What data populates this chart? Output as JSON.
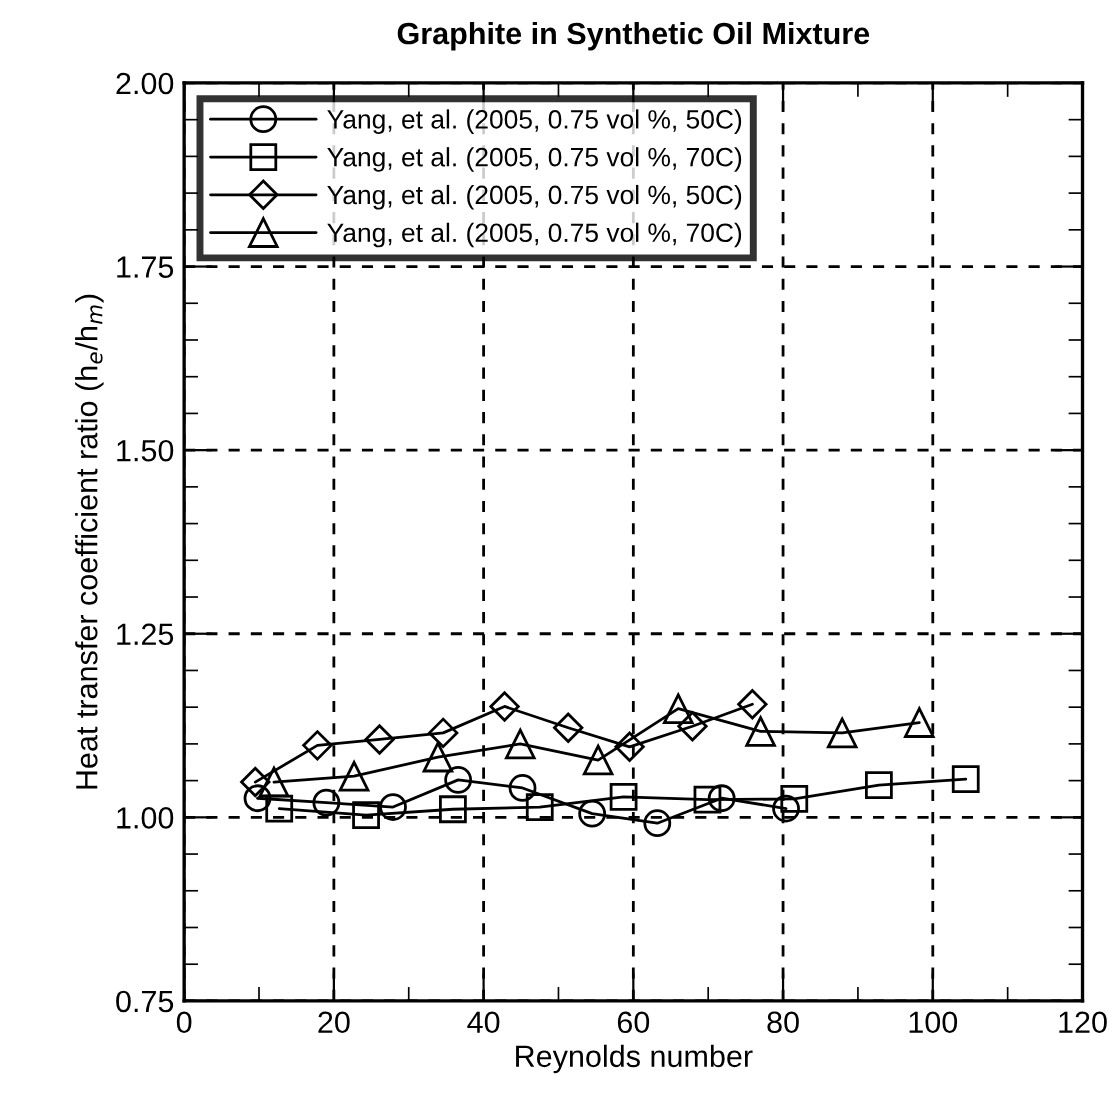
{
  "chart_data": {
    "type": "line",
    "title": "Graphite in Synthetic Oil Mixture",
    "xlabel": "Reynolds number",
    "ylabel": "Heat transfer coefficient ratio (h$_{e}$/h$_{m}$)",
    "xlim": [
      0,
      120
    ],
    "xticks": [
      0,
      {
        "value": 10,
        "label": null
      },
      20,
      {
        "value": 30,
        "label": null
      },
      40,
      {
        "value": 50,
        "label": null
      },
      60,
      {
        "value": 70,
        "label": null
      },
      80,
      {
        "value": 90,
        "label": null
      },
      100,
      {
        "value": 110,
        "label": null
      },
      120
    ],
    "ylim": [
      0.75,
      2.0
    ],
    "yticks": [
      {
        "value": 0.75,
        "label": "0.75"
      },
      {
        "value": 0.8,
        "label": null
      },
      {
        "value": 0.85,
        "label": null
      },
      {
        "value": 0.9,
        "label": null
      },
      {
        "value": 0.95,
        "label": null
      },
      {
        "value": 1.0,
        "label": "1.00"
      },
      {
        "value": 1.05,
        "label": null
      },
      {
        "value": 1.1,
        "label": null
      },
      {
        "value": 1.15,
        "label": null
      },
      {
        "value": 1.2,
        "label": null
      },
      {
        "value": 1.25,
        "label": "1.25"
      },
      {
        "value": 1.3,
        "label": null
      },
      {
        "value": 1.35,
        "label": null
      },
      {
        "value": 1.4,
        "label": null
      },
      {
        "value": 1.45,
        "label": null
      },
      {
        "value": 1.5,
        "label": "1.50"
      },
      {
        "value": 1.55,
        "label": null
      },
      {
        "value": 1.6,
        "label": null
      },
      {
        "value": 1.65,
        "label": null
      },
      {
        "value": 1.7,
        "label": null
      },
      {
        "value": 1.75,
        "label": "1.75"
      },
      {
        "value": 1.8,
        "label": null
      },
      {
        "value": 1.85,
        "label": null
      },
      {
        "value": 1.9,
        "label": null
      },
      {
        "value": 1.95,
        "label": null
      },
      {
        "value": 2.0,
        "label": "2.00"
      }
    ],
    "grid": true,
    "legend": "top left",
    "line_style": "solid",
    "series": [
      {
        "name": "Yang, et al. (2005, 0.75 vol %, 50C)",
        "color": "#000000",
        "marker": "circle",
        "x": [
          9.8,
          19,
          27.9,
          36.6,
          45.2,
          54.5,
          63.2,
          71.8,
          80.4
        ],
        "values": [
          1.026,
          1.02,
          1.014,
          1.051,
          1.04,
          1.005,
          0.992,
          1.026,
          1.012
        ]
      },
      {
        "name": "Yang, et al. (2005, 0.75 vol %, 70C)",
        "color": "#000000",
        "marker": "square",
        "x": [
          12.7,
          24.3,
          35.9,
          47.5,
          58.7,
          69.9,
          81.5,
          92.8,
          104.4
        ],
        "values": [
          1.012,
          1.003,
          1.011,
          1.014,
          1.028,
          1.024,
          1.025,
          1.044,
          1.052
        ]
      },
      {
        "name": "Yang, et al. (2005, 0.75 vol %, 50C)",
        "color": "#000000",
        "marker": "diamond",
        "x": [
          9.5,
          17.8,
          26.1,
          34.6,
          42.8,
          51.3,
          59.5,
          67.9,
          75.9
        ],
        "values": [
          1.048,
          1.098,
          1.106,
          1.115,
          1.151,
          1.122,
          1.096,
          1.124,
          1.154
        ]
      },
      {
        "name": "Yang, et al. (2005, 0.75 vol %, 70C)",
        "color": "#000000",
        "marker": "triangle",
        "x": [
          12,
          22.7,
          33.9,
          44.9,
          55.3,
          66,
          77,
          87.9,
          98.2
        ],
        "values": [
          1.048,
          1.056,
          1.082,
          1.1,
          1.078,
          1.148,
          1.117,
          1.115,
          1.129
        ]
      }
    ]
  }
}
